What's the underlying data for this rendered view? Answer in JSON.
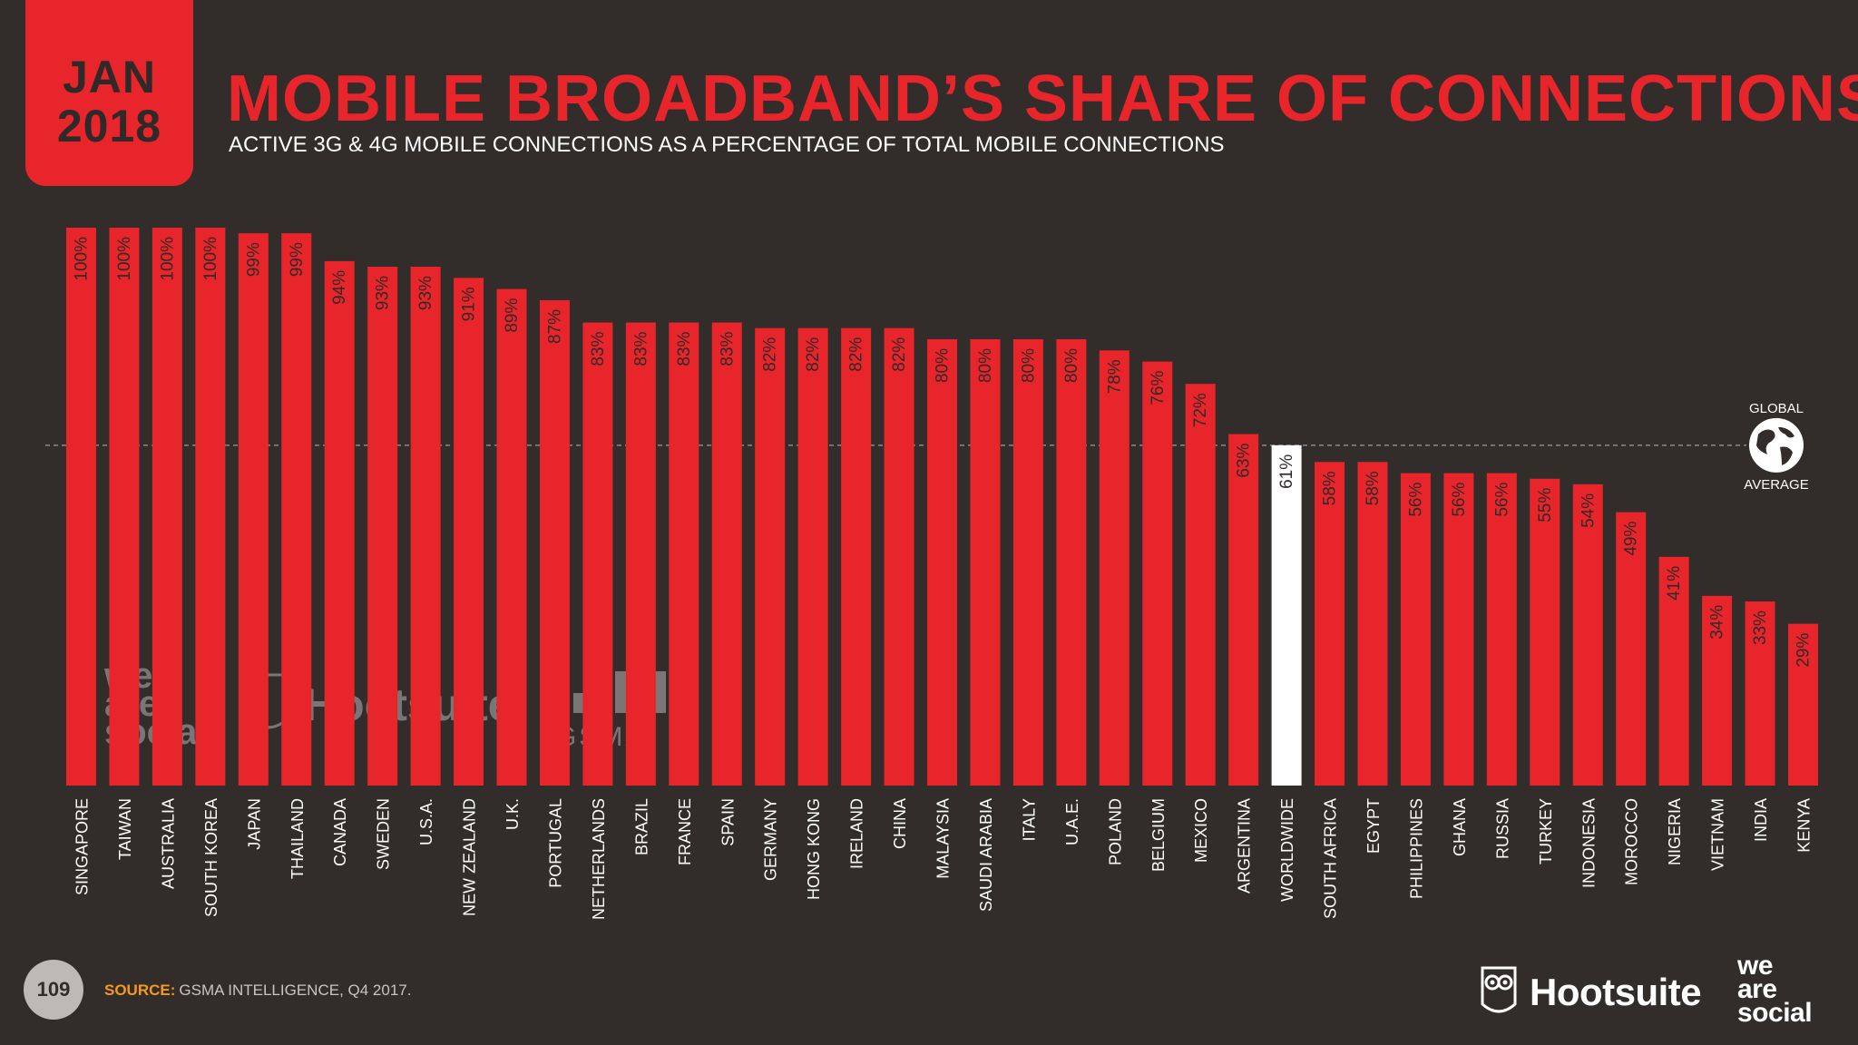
{
  "badge": {
    "month": "JAN",
    "year": "2018"
  },
  "title": "MOBILE BROADBAND’S SHARE OF CONNECTIONS",
  "subtitle": "ACTIVE 3G & 4G MOBILE CONNECTIONS AS A PERCENTAGE OF TOTAL MOBILE CONNECTIONS",
  "global_average_label": "GLOBAL AVERAGE",
  "page_number": "109",
  "source": {
    "label": "SOURCE:",
    "text": "GSMA INTELLIGENCE, Q4 2017."
  },
  "logos": {
    "hootsuite": "Hootsuite",
    "we_are_social": [
      "we",
      "are",
      "social"
    ],
    "gsma": "GSMA"
  },
  "colors": {
    "background": "#322d2b",
    "bar": "#e8252a",
    "highlight": "#ffffff",
    "accent_source": "#f39a1e"
  },
  "chart_data": {
    "type": "bar",
    "orientation": "vertical",
    "ylim": [
      0,
      100
    ],
    "highlight_category": "WORLDWIDE",
    "reference_line": {
      "value": 61
    },
    "categories": [
      "SINGAPORE",
      "TAIWAN",
      "AUSTRALIA",
      "SOUTH KOREA",
      "JAPAN",
      "THAILAND",
      "CANADA",
      "SWEDEN",
      "U.S.A.",
      "NEW ZEALAND",
      "U.K.",
      "PORTUGAL",
      "NETHERLANDS",
      "BRAZIL",
      "FRANCE",
      "SPAIN",
      "GERMANY",
      "HONG KONG",
      "IRELAND",
      "CHINA",
      "MALAYSIA",
      "SAUDI ARABIA",
      "ITALY",
      "U.A.E.",
      "POLAND",
      "BELGIUM",
      "MEXICO",
      "ARGENTINA",
      "WORLDWIDE",
      "SOUTH AFRICA",
      "EGYPT",
      "PHILIPPINES",
      "GHANA",
      "RUSSIA",
      "TURKEY",
      "INDONESIA",
      "MOROCCO",
      "NIGERIA",
      "VIETNAM",
      "INDIA",
      "KENYA"
    ],
    "values": [
      100,
      100,
      100,
      100,
      99,
      99,
      94,
      93,
      93,
      91,
      89,
      87,
      83,
      83,
      83,
      83,
      82,
      82,
      82,
      82,
      80,
      80,
      80,
      80,
      78,
      76,
      72,
      63,
      61,
      58,
      58,
      56,
      56,
      56,
      55,
      54,
      49,
      41,
      34,
      33,
      29
    ],
    "value_labels": [
      "100%",
      "100%",
      "100%",
      "100%",
      "99%",
      "99%",
      "94%",
      "93%",
      "93%",
      "91%",
      "89%",
      "87%",
      "83%",
      "83%",
      "83%",
      "83%",
      "82%",
      "82%",
      "82%",
      "82%",
      "80%",
      "80%",
      "80%",
      "80%",
      "78%",
      "76%",
      "72%",
      "63%",
      "61%",
      "58%",
      "58%",
      "56%",
      "56%",
      "56%",
      "55%",
      "54%",
      "49%",
      "41%",
      "34%",
      "33%",
      "29%"
    ]
  }
}
